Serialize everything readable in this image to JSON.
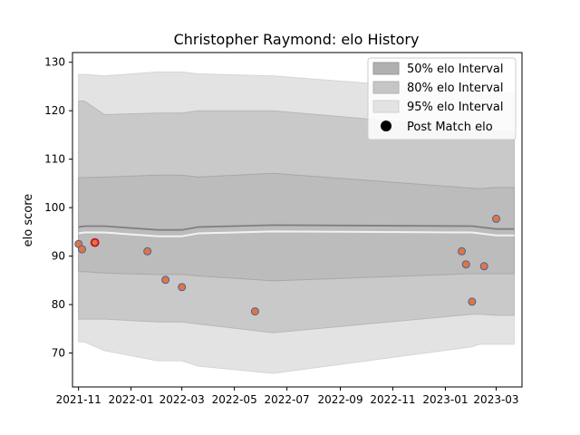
{
  "chart_data": {
    "type": "line",
    "title": "Christopher Raymond: elo History",
    "xlabel": "",
    "ylabel": "elo score",
    "x_ticks": [
      "2021-11",
      "2022-01",
      "2022-03",
      "2022-05",
      "2022-07",
      "2022-09",
      "2022-11",
      "2023-01",
      "2023-03"
    ],
    "y_ticks": [
      70,
      80,
      90,
      100,
      110,
      120,
      130
    ],
    "xlim": [
      "2021-10-25",
      "2023-03-31"
    ],
    "ylim": [
      63,
      132
    ],
    "legend": {
      "position": "top-right",
      "entries": [
        "50% elo Interval",
        "80% elo Interval",
        "95% elo Interval",
        "Post Match elo"
      ]
    },
    "colors": {
      "band_50": "#bcbcbc",
      "band_80": "#c9c9c9",
      "band_95": "#e3e3e3",
      "mean_line": "#7f7f7f",
      "marker_fill": "#e0763e",
      "marker_edge": "#4c5fa0",
      "highlight_edge": "#c0102a"
    },
    "x": [
      "2021-11-01",
      "2021-11-08",
      "2021-12-01",
      "2022-02-01",
      "2022-03-01",
      "2022-03-20",
      "2022-06-15",
      "2023-02-01",
      "2023-02-10",
      "2023-03-01",
      "2023-03-22"
    ],
    "mean": [
      96.0,
      96.2,
      96.2,
      95.4,
      95.4,
      96.0,
      96.4,
      96.2,
      96.0,
      95.6,
      95.6
    ],
    "band_50": {
      "upper": [
        106.2,
        106.2,
        106.3,
        106.7,
        106.7,
        106.3,
        107.1,
        104.0,
        103.9,
        104.2,
        104.2
      ],
      "lower": [
        86.8,
        86.8,
        86.5,
        86.2,
        86.2,
        85.9,
        84.9,
        86.4,
        86.4,
        86.4,
        86.4
      ]
    },
    "band_80": {
      "upper": [
        122.0,
        122.0,
        119.2,
        119.5,
        119.5,
        120.0,
        120.0,
        116.4,
        116.4,
        115.8,
        115.8
      ],
      "lower": [
        77.0,
        77.0,
        77.0,
        76.4,
        76.4,
        76.0,
        74.2,
        78.0,
        78.0,
        77.8,
        77.8
      ]
    },
    "band_95": {
      "upper": [
        127.5,
        127.5,
        127.2,
        128.0,
        128.0,
        127.6,
        127.2,
        124.0,
        124.0,
        123.6,
        123.6
      ],
      "lower": [
        72.3,
        72.3,
        70.5,
        68.4,
        68.4,
        67.3,
        65.8,
        71.3,
        71.8,
        71.8,
        71.8
      ]
    },
    "post_match": {
      "x": [
        "2021-11-01",
        "2021-11-05",
        "2021-11-20",
        "2022-01-20",
        "2022-02-10",
        "2022-03-01",
        "2022-05-25",
        "2023-01-20",
        "2023-01-25",
        "2023-02-01",
        "2023-02-15",
        "2023-03-01"
      ],
      "y": [
        92.5,
        91.4,
        92.8,
        91.0,
        85.1,
        83.6,
        78.6,
        91.0,
        88.3,
        80.6,
        87.9,
        97.7
      ],
      "highlight_index": 2
    }
  }
}
